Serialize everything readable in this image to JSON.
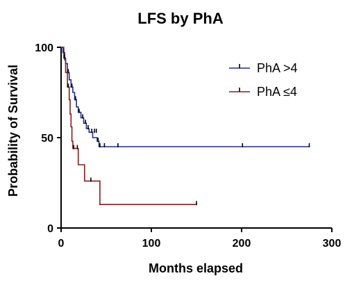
{
  "chart_data": {
    "type": "line",
    "title": "LFS by PhA",
    "xlabel": "Months elapsed",
    "ylabel": "Probability of Survival",
    "xlim": [
      0,
      300
    ],
    "ylim": [
      0,
      100
    ],
    "x_ticks": [
      "0",
      "100",
      "200",
      "300"
    ],
    "y_ticks": [
      "0",
      "50",
      "100"
    ],
    "grid": false,
    "legend_position": "top-right",
    "series": [
      {
        "name": "PhA >4",
        "color": "#1f2f8a",
        "step_points": [
          [
            0,
            100
          ],
          [
            2,
            97
          ],
          [
            4,
            93
          ],
          [
            5,
            91
          ],
          [
            7,
            86
          ],
          [
            9,
            82
          ],
          [
            11,
            78
          ],
          [
            13,
            75
          ],
          [
            15,
            71
          ],
          [
            17,
            67
          ],
          [
            19,
            64
          ],
          [
            22,
            61
          ],
          [
            25,
            58
          ],
          [
            28,
            55
          ],
          [
            31,
            53
          ],
          [
            35,
            50
          ],
          [
            40,
            48
          ],
          [
            42,
            45
          ],
          [
            60,
            45
          ],
          [
            100,
            45
          ],
          [
            150,
            45
          ],
          [
            200,
            45
          ],
          [
            275,
            45
          ]
        ],
        "censor_points": [
          [
            3,
            97
          ],
          [
            8,
            86
          ],
          [
            12,
            78
          ],
          [
            16,
            71
          ],
          [
            20,
            64
          ],
          [
            24,
            61
          ],
          [
            27,
            58
          ],
          [
            30,
            55
          ],
          [
            34,
            53
          ],
          [
            37,
            53
          ],
          [
            39,
            53
          ],
          [
            41,
            48
          ],
          [
            43,
            45
          ],
          [
            48,
            45
          ],
          [
            63,
            45
          ],
          [
            201,
            45
          ],
          [
            275,
            45
          ]
        ]
      },
      {
        "name": "PhA ≤4",
        "color": "#8b1a1a",
        "step_points": [
          [
            0,
            100
          ],
          [
            3,
            94
          ],
          [
            5,
            86
          ],
          [
            7,
            78
          ],
          [
            9,
            71
          ],
          [
            10,
            63
          ],
          [
            11,
            56
          ],
          [
            12,
            48
          ],
          [
            13,
            44
          ],
          [
            17,
            44
          ],
          [
            19,
            35
          ],
          [
            24,
            35
          ],
          [
            26,
            26
          ],
          [
            34,
            26
          ],
          [
            42,
            26
          ],
          [
            43,
            13
          ],
          [
            150,
            13
          ]
        ],
        "censor_points": [
          [
            4,
            94
          ],
          [
            8,
            78
          ],
          [
            14,
            44
          ],
          [
            18,
            44
          ],
          [
            33,
            26
          ],
          [
            150,
            13
          ]
        ]
      }
    ]
  }
}
